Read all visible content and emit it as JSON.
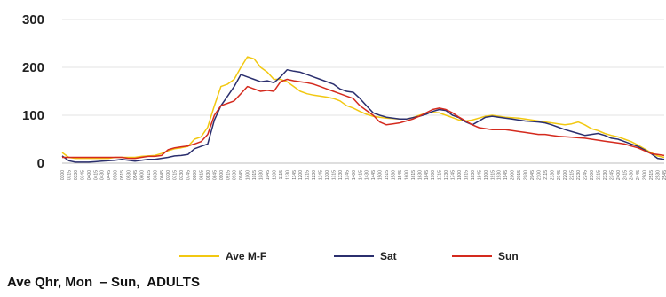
{
  "caption": "Ave Qhr, Mon  – Sun,  ADULTS",
  "chart_data": {
    "type": "line",
    "title": "",
    "xlabel": "",
    "ylabel": "",
    "ylim": [
      0,
      300
    ],
    "yticks": [
      0,
      100,
      200,
      300
    ],
    "grid": "horizontal",
    "legend_position": "bottom",
    "x": [
      "0300",
      "0315",
      "0330",
      "0345",
      "0400",
      "0415",
      "0430",
      "0445",
      "0500",
      "0515",
      "0530",
      "0545",
      "0600",
      "0615",
      "0630",
      "0645",
      "0700",
      "0715",
      "0730",
      "0745",
      "0800",
      "0815",
      "0830",
      "0845",
      "0900",
      "0915",
      "0930",
      "0945",
      "1000",
      "1015",
      "1030",
      "1045",
      "1100",
      "1115",
      "1130",
      "1145",
      "1200",
      "1215",
      "1230",
      "1245",
      "1300",
      "1315",
      "1330",
      "1345",
      "1400",
      "1415",
      "1430",
      "1445",
      "1500",
      "1515",
      "1530",
      "1545",
      "1600",
      "1615",
      "1630",
      "1645",
      "1700",
      "1715",
      "1730",
      "1745",
      "1800",
      "1815",
      "1830",
      "1845",
      "1900",
      "1915",
      "1930",
      "1945",
      "2000",
      "2015",
      "2030",
      "2045",
      "2100",
      "2115",
      "2130",
      "2145",
      "2200",
      "2215",
      "2230",
      "2245",
      "2300",
      "2315",
      "2330",
      "2345",
      "2400",
      "2415",
      "2430",
      "2445",
      "2500",
      "2515",
      "2530",
      "2545"
    ],
    "series": [
      {
        "name": "Ave M-F",
        "color": "#F2C811",
        "values": [
          22,
          12,
          10,
          10,
          10,
          10,
          10,
          10,
          12,
          12,
          12,
          12,
          14,
          15,
          16,
          20,
          26,
          30,
          32,
          35,
          50,
          55,
          75,
          120,
          160,
          165,
          175,
          200,
          222,
          218,
          200,
          190,
          175,
          175,
          170,
          160,
          150,
          145,
          142,
          140,
          138,
          135,
          130,
          120,
          115,
          108,
          102,
          98,
          96,
          94,
          93,
          92,
          92,
          95,
          100,
          104,
          106,
          105,
          100,
          95,
          90,
          88,
          90,
          94,
          98,
          100,
          98,
          96,
          95,
          94,
          92,
          90,
          88,
          86,
          84,
          82,
          80,
          82,
          86,
          80,
          72,
          68,
          62,
          58,
          55,
          50,
          45,
          38,
          30,
          22,
          15,
          12
        ]
      },
      {
        "name": "Sat",
        "color": "#2B2F6E",
        "values": [
          15,
          5,
          2,
          2,
          2,
          3,
          4,
          5,
          6,
          8,
          6,
          4,
          6,
          8,
          8,
          10,
          12,
          15,
          16,
          18,
          30,
          35,
          40,
          90,
          120,
          140,
          160,
          185,
          180,
          175,
          170,
          172,
          168,
          180,
          195,
          192,
          190,
          185,
          180,
          175,
          170,
          165,
          155,
          150,
          148,
          135,
          120,
          105,
          100,
          96,
          94,
          92,
          92,
          95,
          98,
          102,
          108,
          112,
          110,
          100,
          95,
          86,
          80,
          88,
          96,
          98,
          96,
          94,
          92,
          90,
          88,
          87,
          86,
          84,
          80,
          75,
          70,
          66,
          62,
          58,
          60,
          62,
          58,
          52,
          50,
          45,
          40,
          35,
          28,
          20,
          10,
          8
        ]
      },
      {
        "name": "Sun",
        "color": "#D42A1E",
        "values": [
          12,
          12,
          12,
          12,
          12,
          12,
          12,
          12,
          12,
          12,
          10,
          10,
          12,
          14,
          14,
          16,
          28,
          32,
          34,
          36,
          40,
          45,
          60,
          100,
          120,
          125,
          130,
          145,
          160,
          155,
          150,
          152,
          150,
          170,
          175,
          172,
          170,
          168,
          165,
          160,
          155,
          150,
          145,
          140,
          135,
          120,
          110,
          100,
          86,
          80,
          82,
          84,
          88,
          92,
          98,
          105,
          112,
          115,
          112,
          105,
          96,
          88,
          80,
          74,
          72,
          70,
          70,
          70,
          68,
          66,
          64,
          62,
          60,
          60,
          58,
          56,
          55,
          54,
          53,
          52,
          50,
          48,
          46,
          44,
          42,
          40,
          36,
          32,
          26,
          20,
          18,
          16
        ]
      }
    ]
  }
}
